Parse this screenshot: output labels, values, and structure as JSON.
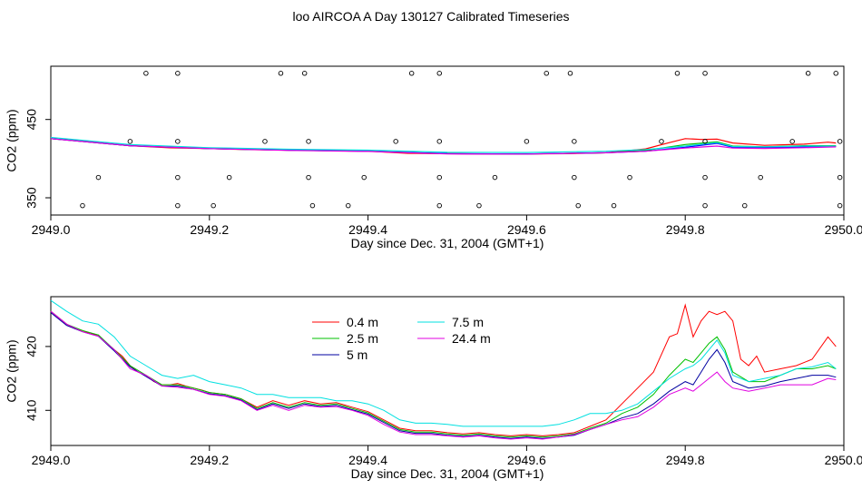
{
  "title": "loo AIRCOA A  Day 130127  Calibrated Timeseries",
  "chart_data": [
    {
      "type": "scatter",
      "xlabel": "Day since Dec. 31, 2004 (GMT+1)",
      "ylabel": "CO2 (ppm)",
      "xlim": [
        2949.0,
        2950.0
      ],
      "ylim": [
        328,
        518
      ],
      "x_ticks": [
        "2949.0",
        "2949.2",
        "2949.4",
        "2949.6",
        "2949.8",
        "2950.0"
      ],
      "y_ticks": [
        "350",
        "450"
      ],
      "calibration_points": [
        [
          2949.04,
          340
        ],
        [
          2949.06,
          376
        ],
        [
          2949.12,
          509
        ],
        [
          2949.1,
          422
        ],
        [
          2949.16,
          509
        ],
        [
          2949.16,
          422
        ],
        [
          2949.16,
          376
        ],
        [
          2949.16,
          340
        ],
        [
          2949.205,
          340
        ],
        [
          2949.225,
          376
        ],
        [
          2949.27,
          422
        ],
        [
          2949.29,
          509
        ],
        [
          2949.32,
          509
        ],
        [
          2949.325,
          422
        ],
        [
          2949.325,
          376
        ],
        [
          2949.33,
          340
        ],
        [
          2949.375,
          340
        ],
        [
          2949.395,
          376
        ],
        [
          2949.435,
          422
        ],
        [
          2949.455,
          509
        ],
        [
          2949.49,
          509
        ],
        [
          2949.49,
          422
        ],
        [
          2949.49,
          376
        ],
        [
          2949.49,
          340
        ],
        [
          2949.54,
          340
        ],
        [
          2949.56,
          376
        ],
        [
          2949.6,
          422
        ],
        [
          2949.625,
          509
        ],
        [
          2949.655,
          509
        ],
        [
          2949.66,
          422
        ],
        [
          2949.66,
          376
        ],
        [
          2949.665,
          340
        ],
        [
          2949.71,
          340
        ],
        [
          2949.73,
          376
        ],
        [
          2949.77,
          422
        ],
        [
          2949.79,
          509
        ],
        [
          2949.825,
          509
        ],
        [
          2949.825,
          422
        ],
        [
          2949.825,
          376
        ],
        [
          2949.825,
          340
        ],
        [
          2949.875,
          340
        ],
        [
          2949.895,
          376
        ],
        [
          2949.935,
          422
        ],
        [
          2949.955,
          509
        ],
        [
          2949.99,
          509
        ],
        [
          2949.995,
          422
        ],
        [
          2949.995,
          376
        ],
        [
          2949.995,
          340
        ]
      ],
      "series": [
        {
          "color": "#ff0000",
          "x": [
            2949.0,
            2949.05,
            2949.1,
            2949.15,
            2949.2,
            2949.25,
            2949.3,
            2949.35,
            2949.4,
            2949.45,
            2949.5,
            2949.55,
            2949.6,
            2949.65,
            2949.7,
            2949.75,
            2949.78,
            2949.8,
            2949.82,
            2949.84,
            2949.86,
            2949.9,
            2949.95,
            2949.98,
            2949.99
          ],
          "values": [
            425.5,
            421.5,
            416.5,
            413.8,
            412.8,
            411.5,
            410.8,
            411.2,
            409.5,
            406.8,
            406.3,
            406.0,
            406.0,
            406.3,
            407.5,
            412.5,
            420.5,
            425.5,
            424.5,
            425.0,
            420.0,
            417.0,
            418.5,
            421.0,
            420.0
          ]
        },
        {
          "color": "#00c000",
          "x": [
            2949.0,
            2949.1,
            2949.2,
            2949.3,
            2949.4,
            2949.5,
            2949.6,
            2949.7,
            2949.75,
            2949.8,
            2949.84,
            2949.86,
            2949.9,
            2949.95,
            2949.99
          ],
          "values": [
            425.5,
            416.5,
            412.8,
            410.8,
            409.5,
            406.3,
            406.0,
            407.5,
            410.5,
            418.0,
            421.5,
            416.0,
            415.0,
            416.5,
            416.5
          ]
        },
        {
          "color": "#0000ff",
          "x": [
            2949.0,
            2949.1,
            2949.2,
            2949.3,
            2949.4,
            2949.5,
            2949.6,
            2949.7,
            2949.75,
            2949.8,
            2949.84,
            2949.86,
            2949.9,
            2949.95,
            2949.99
          ],
          "values": [
            425.5,
            416.5,
            412.8,
            410.8,
            409.5,
            406.3,
            406.0,
            407.5,
            409.5,
            414.5,
            419.5,
            414.5,
            414.0,
            415.0,
            415.5
          ]
        },
        {
          "color": "#00e0e0",
          "x": [
            2949.0,
            2949.1,
            2949.2,
            2949.3,
            2949.4,
            2949.5,
            2949.6,
            2949.7,
            2949.75,
            2949.8,
            2949.84,
            2949.86,
            2949.9,
            2949.95,
            2949.99
          ],
          "values": [
            427.0,
            418.0,
            414.0,
            412.0,
            410.8,
            408.0,
            407.8,
            409.5,
            411.5,
            416.0,
            420.5,
            415.5,
            415.0,
            416.0,
            416.0
          ]
        },
        {
          "color": "#e000e0",
          "x": [
            2949.0,
            2949.1,
            2949.2,
            2949.3,
            2949.4,
            2949.5,
            2949.6,
            2949.7,
            2949.75,
            2949.8,
            2949.84,
            2949.86,
            2949.9,
            2949.95,
            2949.99
          ],
          "values": [
            425.5,
            416.5,
            412.8,
            410.5,
            409.2,
            406.0,
            405.8,
            407.5,
            409.5,
            413.5,
            416.0,
            413.5,
            413.0,
            414.0,
            415.0
          ]
        }
      ]
    },
    {
      "type": "line",
      "xlabel": "Day since Dec. 31, 2004 (GMT+1)",
      "ylabel": "CO2 (ppm)",
      "xlim": [
        2949.0,
        2950.0
      ],
      "ylim": [
        404.5,
        427.8
      ],
      "x_ticks": [
        "2949.0",
        "2949.2",
        "2949.4",
        "2949.6",
        "2949.8",
        "2950.0"
      ],
      "y_ticks": [
        "410",
        "420"
      ],
      "legend_placement": "top-center",
      "series": [
        {
          "name": "0.4 m",
          "color": "#ff0000",
          "x": [
            2949.0,
            2949.01,
            2949.02,
            2949.03,
            2949.04,
            2949.05,
            2949.06,
            2949.07,
            2949.08,
            2949.09,
            2949.1,
            2949.11,
            2949.12,
            2949.13,
            2949.14,
            2949.15,
            2949.16,
            2949.17,
            2949.18,
            2949.19,
            2949.2,
            2949.22,
            2949.24,
            2949.26,
            2949.28,
            2949.3,
            2949.32,
            2949.34,
            2949.36,
            2949.38,
            2949.4,
            2949.42,
            2949.44,
            2949.46,
            2949.48,
            2949.5,
            2949.52,
            2949.54,
            2949.56,
            2949.58,
            2949.6,
            2949.62,
            2949.64,
            2949.66,
            2949.68,
            2949.7,
            2949.72,
            2949.74,
            2949.76,
            2949.78,
            2949.79,
            2949.8,
            2949.81,
            2949.82,
            2949.83,
            2949.84,
            2949.85,
            2949.86,
            2949.87,
            2949.88,
            2949.89,
            2949.9,
            2949.92,
            2949.94,
            2949.96,
            2949.98,
            2949.99
          ],
          "values": [
            425.5,
            424.5,
            423.5,
            422.8,
            422.5,
            422.0,
            421.8,
            420.5,
            419.5,
            418.5,
            417.0,
            416.0,
            415.5,
            414.5,
            414.0,
            414.0,
            414.2,
            413.8,
            413.5,
            413.2,
            412.8,
            412.5,
            411.8,
            410.5,
            411.5,
            410.8,
            411.5,
            411.0,
            411.2,
            410.5,
            409.8,
            408.5,
            407.2,
            406.8,
            406.8,
            406.5,
            406.3,
            406.5,
            406.2,
            406.0,
            406.2,
            406.0,
            406.2,
            406.5,
            407.5,
            408.5,
            411.0,
            413.5,
            416.0,
            421.5,
            422.0,
            426.5,
            421.5,
            424.0,
            425.5,
            425.0,
            425.5,
            424.0,
            418.0,
            417.0,
            418.5,
            416.0,
            416.5,
            417.0,
            418.0,
            421.5,
            420.0
          ]
        },
        {
          "name": "2.5 m",
          "color": "#00c000",
          "x": [
            2949.0,
            2949.02,
            2949.04,
            2949.06,
            2949.08,
            2949.1,
            2949.12,
            2949.14,
            2949.16,
            2949.18,
            2949.2,
            2949.22,
            2949.24,
            2949.26,
            2949.28,
            2949.3,
            2949.32,
            2949.34,
            2949.36,
            2949.38,
            2949.4,
            2949.42,
            2949.44,
            2949.46,
            2949.48,
            2949.5,
            2949.52,
            2949.54,
            2949.56,
            2949.58,
            2949.6,
            2949.62,
            2949.64,
            2949.66,
            2949.68,
            2949.7,
            2949.72,
            2949.74,
            2949.76,
            2949.78,
            2949.8,
            2949.81,
            2949.82,
            2949.83,
            2949.84,
            2949.85,
            2949.86,
            2949.88,
            2949.9,
            2949.92,
            2949.94,
            2949.96,
            2949.98,
            2949.99
          ],
          "values": [
            425.5,
            423.5,
            422.5,
            421.8,
            419.5,
            417.0,
            415.5,
            414.0,
            414.0,
            413.5,
            412.8,
            412.5,
            411.8,
            410.3,
            411.2,
            410.5,
            411.2,
            410.8,
            411.0,
            410.3,
            409.6,
            408.3,
            407.0,
            406.6,
            406.6,
            406.3,
            406.1,
            406.3,
            406.0,
            405.8,
            406.0,
            405.8,
            406.0,
            406.3,
            407.2,
            408.0,
            409.5,
            410.5,
            412.5,
            415.5,
            418.0,
            417.5,
            419.0,
            420.5,
            421.5,
            419.5,
            416.0,
            414.5,
            414.5,
            415.5,
            416.5,
            416.5,
            417.0,
            416.5
          ]
        },
        {
          "name": "5 m",
          "color": "#0000a0",
          "x": [
            2949.0,
            2949.02,
            2949.04,
            2949.06,
            2949.08,
            2949.1,
            2949.12,
            2949.14,
            2949.16,
            2949.18,
            2949.2,
            2949.22,
            2949.24,
            2949.26,
            2949.28,
            2949.3,
            2949.32,
            2949.34,
            2949.36,
            2949.38,
            2949.4,
            2949.42,
            2949.44,
            2949.46,
            2949.48,
            2949.5,
            2949.52,
            2949.54,
            2949.56,
            2949.58,
            2949.6,
            2949.62,
            2949.64,
            2949.66,
            2949.68,
            2949.7,
            2949.72,
            2949.74,
            2949.76,
            2949.78,
            2949.8,
            2949.81,
            2949.82,
            2949.83,
            2949.84,
            2949.85,
            2949.86,
            2949.88,
            2949.9,
            2949.92,
            2949.94,
            2949.96,
            2949.98,
            2949.99
          ],
          "values": [
            425.3,
            423.3,
            422.3,
            421.6,
            419.3,
            416.8,
            415.3,
            413.8,
            413.8,
            413.3,
            412.6,
            412.3,
            411.6,
            410.1,
            411.0,
            410.3,
            411.0,
            410.6,
            410.8,
            410.1,
            409.4,
            408.1,
            406.8,
            406.4,
            406.4,
            406.1,
            405.9,
            406.1,
            405.8,
            405.6,
            405.8,
            405.6,
            405.8,
            406.1,
            407.0,
            407.8,
            408.8,
            409.5,
            411.0,
            413.0,
            414.5,
            414.0,
            416.0,
            418.0,
            419.5,
            417.5,
            414.5,
            413.5,
            413.8,
            414.5,
            415.0,
            415.5,
            415.5,
            415.2
          ]
        },
        {
          "name": "7.5 m",
          "color": "#00e0e0",
          "x": [
            2949.0,
            2949.02,
            2949.04,
            2949.06,
            2949.08,
            2949.1,
            2949.12,
            2949.14,
            2949.16,
            2949.18,
            2949.2,
            2949.22,
            2949.24,
            2949.26,
            2949.28,
            2949.3,
            2949.32,
            2949.34,
            2949.36,
            2949.38,
            2949.4,
            2949.42,
            2949.44,
            2949.46,
            2949.48,
            2949.5,
            2949.52,
            2949.54,
            2949.56,
            2949.58,
            2949.6,
            2949.62,
            2949.64,
            2949.66,
            2949.68,
            2949.7,
            2949.72,
            2949.74,
            2949.76,
            2949.78,
            2949.8,
            2949.81,
            2949.82,
            2949.83,
            2949.84,
            2949.85,
            2949.86,
            2949.88,
            2949.9,
            2949.92,
            2949.94,
            2949.96,
            2949.98,
            2949.99
          ],
          "values": [
            427.2,
            425.5,
            424.0,
            423.5,
            421.5,
            418.5,
            417.0,
            415.5,
            415.0,
            415.5,
            414.5,
            414.0,
            413.5,
            412.5,
            412.5,
            412.0,
            412.0,
            412.0,
            411.5,
            411.5,
            411.0,
            410.0,
            408.5,
            408.0,
            408.0,
            407.8,
            407.5,
            407.5,
            407.5,
            407.5,
            407.5,
            407.5,
            407.8,
            408.5,
            409.5,
            409.5,
            410.0,
            411.0,
            413.0,
            415.0,
            416.5,
            417.0,
            418.0,
            419.5,
            421.0,
            419.0,
            415.5,
            414.5,
            415.0,
            415.5,
            416.5,
            416.8,
            417.5,
            416.5
          ]
        },
        {
          "name": "24.4 m",
          "color": "#e000e0",
          "x": [
            2949.0,
            2949.02,
            2949.04,
            2949.06,
            2949.08,
            2949.1,
            2949.12,
            2949.14,
            2949.16,
            2949.18,
            2949.2,
            2949.22,
            2949.24,
            2949.26,
            2949.28,
            2949.3,
            2949.32,
            2949.34,
            2949.36,
            2949.38,
            2949.4,
            2949.42,
            2949.44,
            2949.46,
            2949.48,
            2949.5,
            2949.52,
            2949.54,
            2949.56,
            2949.58,
            2949.6,
            2949.62,
            2949.64,
            2949.66,
            2949.68,
            2949.7,
            2949.72,
            2949.74,
            2949.76,
            2949.78,
            2949.8,
            2949.81,
            2949.82,
            2949.83,
            2949.84,
            2949.85,
            2949.86,
            2949.88,
            2949.9,
            2949.92,
            2949.94,
            2949.96,
            2949.98,
            2949.99
          ],
          "values": [
            425.5,
            423.5,
            422.3,
            421.6,
            419.5,
            416.5,
            415.5,
            413.8,
            413.6,
            413.3,
            412.5,
            412.2,
            411.5,
            410.0,
            410.8,
            410.0,
            410.8,
            410.5,
            410.6,
            410.0,
            409.2,
            407.8,
            406.6,
            406.2,
            406.2,
            406.0,
            405.8,
            406.0,
            405.7,
            405.5,
            405.7,
            405.5,
            405.8,
            406.2,
            407.0,
            407.8,
            408.5,
            409.0,
            410.5,
            412.5,
            413.5,
            413.0,
            414.0,
            415.0,
            416.0,
            414.5,
            413.5,
            413.0,
            413.5,
            414.0,
            414.0,
            414.0,
            415.0,
            414.8
          ]
        }
      ]
    }
  ]
}
